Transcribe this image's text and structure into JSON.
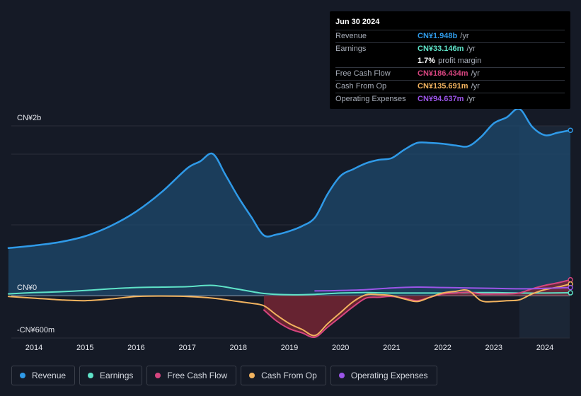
{
  "tooltip": {
    "date": "Jun 30 2024",
    "rows": [
      {
        "label": "Revenue",
        "value": "CN¥1.948b",
        "unit": "/yr",
        "color": "#2f9ae8"
      },
      {
        "label": "Earnings",
        "value": "CN¥33.146m",
        "unit": "/yr",
        "color": "#5fe3c8"
      },
      {
        "label": "",
        "value": "1.7%",
        "unit": "profit margin",
        "color": "#ffffff"
      },
      {
        "label": "Free Cash Flow",
        "value": "CN¥186.434m",
        "unit": "/yr",
        "color": "#d6457f"
      },
      {
        "label": "Cash From Op",
        "value": "CN¥135.691m",
        "unit": "/yr",
        "color": "#f2b35f"
      },
      {
        "label": "Operating Expenses",
        "value": "CN¥94.637m",
        "unit": "/yr",
        "color": "#9b55e8"
      }
    ]
  },
  "legend": [
    {
      "label": "Revenue",
      "color": "#2f9ae8"
    },
    {
      "label": "Earnings",
      "color": "#5fe3c8"
    },
    {
      "label": "Free Cash Flow",
      "color": "#d6457f"
    },
    {
      "label": "Cash From Op",
      "color": "#f2b35f"
    },
    {
      "label": "Operating Expenses",
      "color": "#9b55e8"
    }
  ],
  "chart_data": {
    "type": "area",
    "title": "",
    "xlabel": "",
    "ylabel": "",
    "y_tick_labels": [
      {
        "value": 2000,
        "label": "CN¥2b"
      },
      {
        "value": 0,
        "label": "CN¥0"
      },
      {
        "value": -600,
        "label": "-CN¥600m"
      }
    ],
    "ylim": [
      -600,
      2000
    ],
    "xlim": [
      2013.5,
      2024.5
    ],
    "x_ticks": [
      2014,
      2015,
      2016,
      2017,
      2018,
      2019,
      2020,
      2021,
      2022,
      2023,
      2024
    ],
    "units": "CN¥ millions",
    "grid": true,
    "highlight_from": 2023.5,
    "series": [
      {
        "name": "Revenue",
        "color": "#2f9ae8",
        "fill": true,
        "x": [
          2013.5,
          2014.0,
          2014.5,
          2015.0,
          2015.5,
          2016.0,
          2016.5,
          2017.0,
          2017.25,
          2017.5,
          2017.75,
          2018.0,
          2018.25,
          2018.5,
          2018.75,
          2019.0,
          2019.25,
          2019.5,
          2019.75,
          2020.0,
          2020.25,
          2020.5,
          2020.75,
          2021.0,
          2021.25,
          2021.5,
          2021.75,
          2022.0,
          2022.25,
          2022.5,
          2022.75,
          2023.0,
          2023.25,
          2023.5,
          2023.75,
          2024.0,
          2024.25,
          2024.5
        ],
        "values": [
          560,
          590,
          630,
          700,
          820,
          990,
          1220,
          1500,
          1580,
          1670,
          1420,
          1160,
          930,
          710,
          720,
          760,
          820,
          920,
          1200,
          1410,
          1490,
          1560,
          1600,
          1620,
          1720,
          1800,
          1800,
          1790,
          1770,
          1760,
          1870,
          2030,
          2100,
          2200,
          1990,
          1890,
          1920,
          1948
        ]
      },
      {
        "name": "Earnings",
        "color": "#5fe3c8",
        "fill": false,
        "x": [
          2013.5,
          2014.0,
          2014.5,
          2015.0,
          2015.5,
          2016.0,
          2016.5,
          2017.0,
          2017.5,
          2018.0,
          2018.5,
          2019.0,
          2019.5,
          2020.0,
          2020.5,
          2021.0,
          2021.5,
          2022.0,
          2022.5,
          2023.0,
          2023.5,
          2024.0,
          2024.5
        ],
        "values": [
          20,
          35,
          45,
          60,
          80,
          95,
          100,
          105,
          120,
          75,
          25,
          10,
          15,
          30,
          35,
          30,
          30,
          30,
          35,
          35,
          30,
          30,
          33
        ]
      },
      {
        "name": "Free Cash Flow",
        "color": "#d6457f",
        "fill": true,
        "x": [
          2018.5,
          2018.75,
          2019.0,
          2019.25,
          2019.5,
          2019.75,
          2020.0,
          2020.25,
          2020.5,
          2020.75,
          2021.0,
          2021.25,
          2021.5,
          2021.75,
          2022.0,
          2022.25,
          2022.5,
          2022.75,
          2023.0,
          2023.25,
          2023.5,
          2023.75,
          2024.0,
          2024.25,
          2024.5
        ],
        "values": [
          -170,
          -300,
          -390,
          -440,
          -490,
          -370,
          -250,
          -130,
          -30,
          -20,
          -10,
          -30,
          -60,
          -20,
          20,
          30,
          40,
          20,
          20,
          20,
          30,
          80,
          120,
          150,
          186
        ]
      },
      {
        "name": "Cash From Op",
        "color": "#f2b35f",
        "fill": false,
        "x": [
          2013.5,
          2014.0,
          2014.5,
          2015.0,
          2015.5,
          2016.0,
          2016.5,
          2017.0,
          2017.5,
          2018.0,
          2018.25,
          2018.5,
          2018.75,
          2019.0,
          2019.25,
          2019.5,
          2019.75,
          2020.0,
          2020.25,
          2020.5,
          2020.75,
          2021.0,
          2021.25,
          2021.5,
          2021.75,
          2022.0,
          2022.25,
          2022.5,
          2022.75,
          2023.0,
          2023.25,
          2023.5,
          2023.75,
          2024.0,
          2024.25,
          2024.5
        ],
        "values": [
          -10,
          -30,
          -50,
          -60,
          -40,
          -10,
          -5,
          -10,
          -30,
          -70,
          -90,
          -120,
          -230,
          -330,
          -400,
          -470,
          -330,
          -200,
          -70,
          10,
          10,
          0,
          -40,
          -70,
          -20,
          30,
          50,
          60,
          -60,
          -70,
          -60,
          -50,
          20,
          70,
          100,
          136
        ]
      },
      {
        "name": "Operating Expenses",
        "color": "#9b55e8",
        "fill": false,
        "x": [
          2019.5,
          2020.0,
          2020.5,
          2021.0,
          2021.5,
          2022.0,
          2022.5,
          2023.0,
          2023.5,
          2024.0,
          2024.5
        ],
        "values": [
          55,
          60,
          70,
          90,
          100,
          95,
          90,
          85,
          80,
          85,
          95
        ]
      }
    ]
  }
}
